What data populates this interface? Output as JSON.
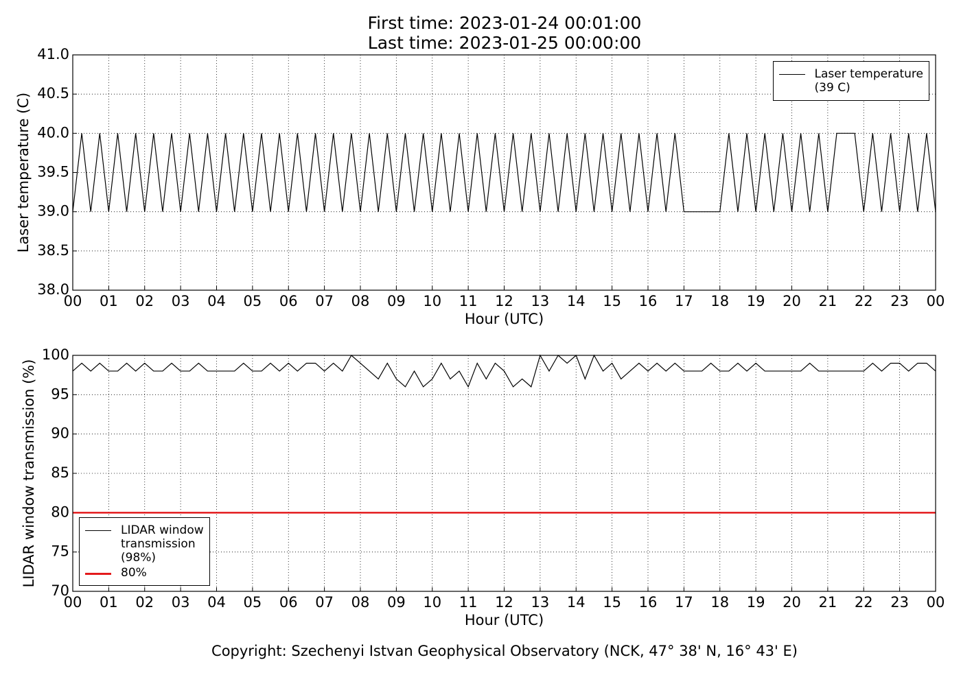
{
  "header": {
    "title_lines": [
      "First time: 2023-01-24 00:01:00",
      "Last time: 2023-01-25 00:00:00"
    ]
  },
  "footer": "Copyright: Szechenyi Istvan Geophysical Observatory (NCK, 47° 38' N, 16° 43' E)",
  "chart_data": [
    {
      "type": "line",
      "y_label": "Laser temperature (C)",
      "x_label": "Hour (UTC)",
      "xlim": [
        0,
        24
      ],
      "ylim": [
        38,
        41
      ],
      "grid": true,
      "legend": "upper right",
      "xticks": [
        {
          "value": 0,
          "label": "00"
        },
        {
          "value": 1,
          "label": "01"
        },
        {
          "value": 2,
          "label": "02"
        },
        {
          "value": 3,
          "label": "03"
        },
        {
          "value": 4,
          "label": "04"
        },
        {
          "value": 5,
          "label": "05"
        },
        {
          "value": 6,
          "label": "06"
        },
        {
          "value": 7,
          "label": "07"
        },
        {
          "value": 8,
          "label": "08"
        },
        {
          "value": 9,
          "label": "09"
        },
        {
          "value": 10,
          "label": "10"
        },
        {
          "value": 11,
          "label": "11"
        },
        {
          "value": 12,
          "label": "12"
        },
        {
          "value": 13,
          "label": "13"
        },
        {
          "value": 14,
          "label": "14"
        },
        {
          "value": 15,
          "label": "15"
        },
        {
          "value": 16,
          "label": "16"
        },
        {
          "value": 17,
          "label": "17"
        },
        {
          "value": 18,
          "label": "18"
        },
        {
          "value": 19,
          "label": "19"
        },
        {
          "value": 20,
          "label": "20"
        },
        {
          "value": 21,
          "label": "21"
        },
        {
          "value": 22,
          "label": "22"
        },
        {
          "value": 23,
          "label": "23"
        },
        {
          "value": 24,
          "label": "00"
        }
      ],
      "yticks": [
        {
          "value": 38,
          "label": "38.0"
        },
        38.5,
        {
          "value": 39,
          "label": "39.0"
        },
        39.5,
        {
          "value": 40,
          "label": "40.0"
        },
        40.5,
        {
          "value": 41,
          "label": "41.0"
        }
      ],
      "series": [
        {
          "name": "Laser temperature\n(39 C)",
          "color": "#000000",
          "x": [
            0,
            0.25,
            0.5,
            0.75,
            1,
            1.25,
            1.5,
            1.75,
            2,
            2.25,
            2.5,
            2.75,
            3,
            3.25,
            3.5,
            3.75,
            4,
            4.25,
            4.5,
            4.75,
            5,
            5.25,
            5.5,
            5.75,
            6,
            6.25,
            6.5,
            6.75,
            7,
            7.25,
            7.5,
            7.75,
            8,
            8.25,
            8.5,
            8.75,
            9,
            9.25,
            9.5,
            9.75,
            10,
            10.25,
            10.5,
            10.75,
            11,
            11.25,
            11.5,
            11.75,
            12,
            12.25,
            12.5,
            12.75,
            13,
            13.25,
            13.5,
            13.75,
            14,
            14.25,
            14.5,
            14.75,
            15,
            15.25,
            15.5,
            15.75,
            16,
            16.25,
            16.5,
            16.75,
            17,
            17.25,
            17.5,
            17.75,
            18,
            18.25,
            18.5,
            18.75,
            19,
            19.25,
            19.5,
            19.75,
            20,
            20.25,
            20.5,
            20.75,
            21,
            21.25,
            21.5,
            21.75,
            22,
            22.25,
            22.5,
            22.75,
            23,
            23.25,
            23.5,
            23.75,
            24
          ],
          "values": [
            39,
            40,
            39,
            40,
            39,
            40,
            39,
            40,
            39,
            40,
            39,
            40,
            39,
            40,
            39,
            40,
            39,
            40,
            39,
            40,
            39,
            40,
            39,
            40,
            39,
            40,
            39,
            40,
            39,
            40,
            39,
            40,
            39,
            40,
            39,
            40,
            39,
            40,
            39,
            40,
            39,
            40,
            39,
            40,
            39,
            40,
            39,
            40,
            39,
            40,
            39,
            40,
            39,
            40,
            39,
            40,
            39,
            40,
            39,
            40,
            39,
            40,
            39,
            40,
            39,
            40,
            39,
            40,
            39,
            39,
            39,
            39,
            39,
            40,
            39,
            40,
            39,
            40,
            39,
            40,
            39,
            40,
            39,
            40,
            39,
            40,
            40,
            40,
            39,
            40,
            39,
            40,
            39,
            40,
            39,
            40,
            39
          ]
        }
      ]
    },
    {
      "type": "line",
      "y_label": "LIDAR window transmission (%)",
      "x_label": "Hour (UTC)",
      "xlim": [
        0,
        24
      ],
      "ylim": [
        70,
        100
      ],
      "grid": true,
      "legend": "lower left",
      "xticks": [
        {
          "value": 0,
          "label": "00"
        },
        {
          "value": 1,
          "label": "01"
        },
        {
          "value": 2,
          "label": "02"
        },
        {
          "value": 3,
          "label": "03"
        },
        {
          "value": 4,
          "label": "04"
        },
        {
          "value": 5,
          "label": "05"
        },
        {
          "value": 6,
          "label": "06"
        },
        {
          "value": 7,
          "label": "07"
        },
        {
          "value": 8,
          "label": "08"
        },
        {
          "value": 9,
          "label": "09"
        },
        {
          "value": 10,
          "label": "10"
        },
        {
          "value": 11,
          "label": "11"
        },
        {
          "value": 12,
          "label": "12"
        },
        {
          "value": 13,
          "label": "13"
        },
        {
          "value": 14,
          "label": "14"
        },
        {
          "value": 15,
          "label": "15"
        },
        {
          "value": 16,
          "label": "16"
        },
        {
          "value": 17,
          "label": "17"
        },
        {
          "value": 18,
          "label": "18"
        },
        {
          "value": 19,
          "label": "19"
        },
        {
          "value": 20,
          "label": "20"
        },
        {
          "value": 21,
          "label": "21"
        },
        {
          "value": 22,
          "label": "22"
        },
        {
          "value": 23,
          "label": "23"
        },
        {
          "value": 24,
          "label": "00"
        }
      ],
      "yticks": [
        70,
        75,
        80,
        85,
        90,
        95,
        100
      ],
      "series": [
        {
          "name": "LIDAR window\ntransmission\n(98%)",
          "color": "#000000",
          "x": [
            0,
            0.25,
            0.5,
            0.75,
            1,
            1.25,
            1.5,
            1.75,
            2,
            2.25,
            2.5,
            2.75,
            3,
            3.25,
            3.5,
            3.75,
            4,
            4.25,
            4.5,
            4.75,
            5,
            5.25,
            5.5,
            5.75,
            6,
            6.25,
            6.5,
            6.75,
            7,
            7.25,
            7.5,
            7.75,
            8,
            8.25,
            8.5,
            8.75,
            9,
            9.25,
            9.5,
            9.75,
            10,
            10.25,
            10.5,
            10.75,
            11,
            11.25,
            11.5,
            11.75,
            12,
            12.25,
            12.5,
            12.75,
            13,
            13.25,
            13.5,
            13.75,
            14,
            14.25,
            14.5,
            14.75,
            15,
            15.25,
            15.5,
            15.75,
            16,
            16.25,
            16.5,
            16.75,
            17,
            17.25,
            17.5,
            17.75,
            18,
            18.25,
            18.5,
            18.75,
            19,
            19.25,
            19.5,
            19.75,
            20,
            20.25,
            20.5,
            20.75,
            21,
            21.25,
            21.5,
            21.75,
            22,
            22.25,
            22.5,
            22.75,
            23,
            23.25,
            23.5,
            23.75,
            24
          ],
          "values": [
            98,
            99,
            98,
            99,
            98,
            98,
            99,
            98,
            99,
            98,
            98,
            99,
            98,
            98,
            99,
            98,
            98,
            98,
            98,
            99,
            98,
            98,
            99,
            98,
            99,
            98,
            99,
            99,
            98,
            99,
            98,
            100,
            99,
            98,
            97,
            99,
            97,
            96,
            98,
            96,
            97,
            99,
            97,
            98,
            96,
            99,
            97,
            99,
            98,
            96,
            97,
            96,
            100,
            98,
            100,
            99,
            100,
            97,
            100,
            98,
            99,
            97,
            98,
            99,
            98,
            99,
            98,
            99,
            98,
            98,
            98,
            99,
            98,
            98,
            99,
            98,
            99,
            98,
            98,
            98,
            98,
            98,
            99,
            98,
            98,
            98,
            98,
            98,
            98,
            99,
            98,
            99,
            99,
            98,
            99,
            99,
            98
          ]
        },
        {
          "name": "80%",
          "color": "#e31a1c",
          "x": [
            0,
            24
          ],
          "values": [
            80,
            80
          ]
        }
      ]
    }
  ]
}
